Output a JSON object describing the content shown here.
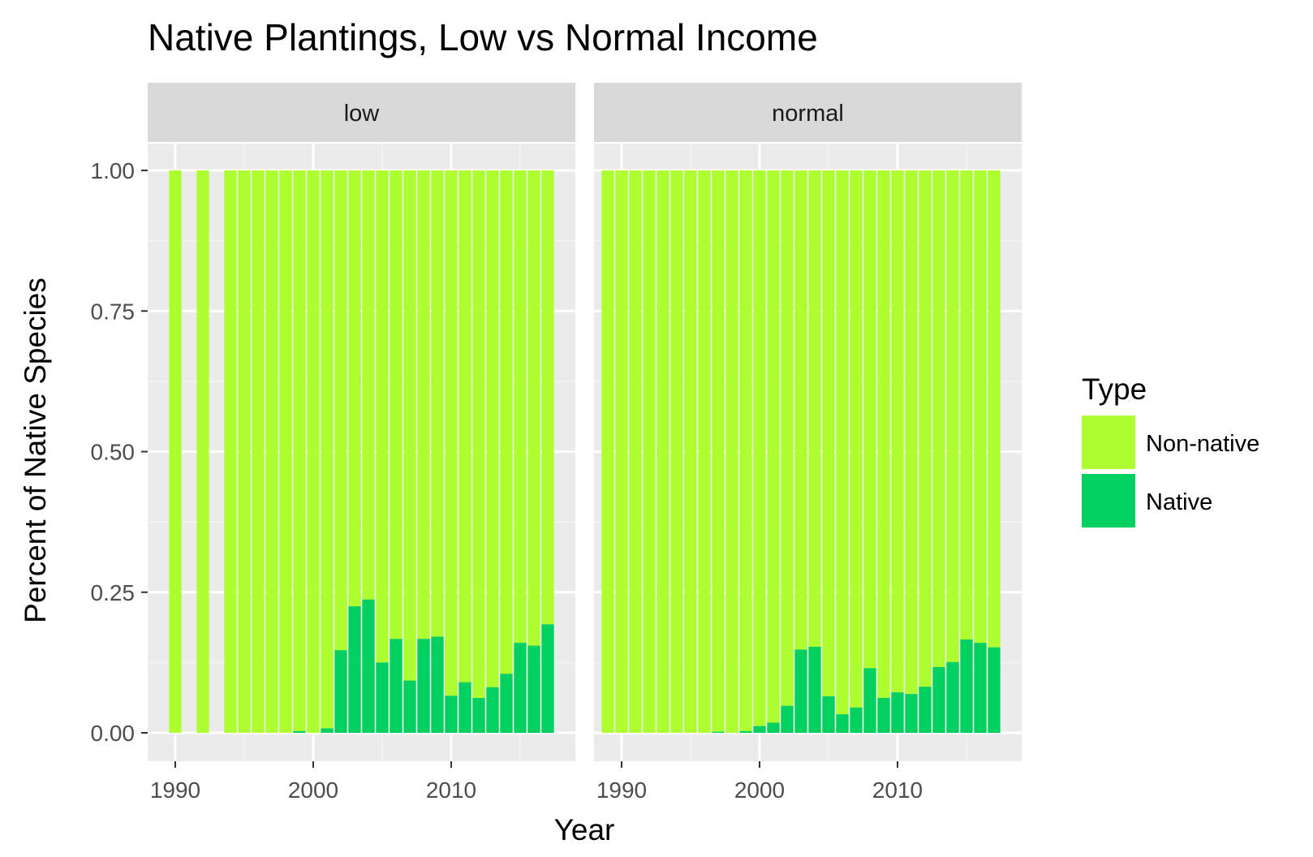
{
  "chart_data": {
    "type": "bar",
    "stacked": true,
    "title": "Native Plantings, Low vs Normal Income",
    "xlabel": "Year",
    "ylabel": "Percent of Native Species",
    "ylim": [
      0,
      1.1
    ],
    "xlim": [
      1988,
      2019
    ],
    "x_ticks": [
      1990,
      2000,
      2010
    ],
    "y_ticks": [
      "0.00",
      "0.25",
      "0.50",
      "0.75",
      "1.00"
    ],
    "grid": true,
    "legend": {
      "title": "Type",
      "position": "right",
      "entries": [
        {
          "name": "Non-native",
          "color": "#adff2f"
        },
        {
          "name": "Native",
          "color": "#00d060"
        }
      ]
    },
    "facets": [
      {
        "label": "low",
        "years": [
          1990,
          1992,
          1994,
          1995,
          1996,
          1997,
          1998,
          1999,
          2000,
          2001,
          2002,
          2003,
          2004,
          2005,
          2006,
          2007,
          2008,
          2009,
          2010,
          2011,
          2012,
          2013,
          2014,
          2015,
          2016,
          2017
        ],
        "native": [
          0,
          0,
          0,
          0,
          0,
          0,
          0,
          0.003,
          0,
          0.008,
          0.147,
          0.225,
          0.237,
          0.125,
          0.167,
          0.093,
          0.167,
          0.171,
          0.066,
          0.09,
          0.062,
          0.081,
          0.105,
          0.16,
          0.155,
          0.193
        ]
      },
      {
        "label": "normal",
        "years": [
          1989,
          1990,
          1991,
          1992,
          1993,
          1994,
          1995,
          1996,
          1997,
          1998,
          1999,
          2000,
          2001,
          2002,
          2003,
          2004,
          2005,
          2006,
          2007,
          2008,
          2009,
          2010,
          2011,
          2012,
          2013,
          2014,
          2015,
          2016,
          2017
        ],
        "native": [
          0,
          0,
          0,
          0,
          0,
          0,
          0,
          0,
          0.002,
          0,
          0.003,
          0.012,
          0.018,
          0.048,
          0.148,
          0.153,
          0.065,
          0.033,
          0.045,
          0.115,
          0.062,
          0.072,
          0.069,
          0.082,
          0.117,
          0.126,
          0.166,
          0.16,
          0.152
        ]
      }
    ]
  }
}
